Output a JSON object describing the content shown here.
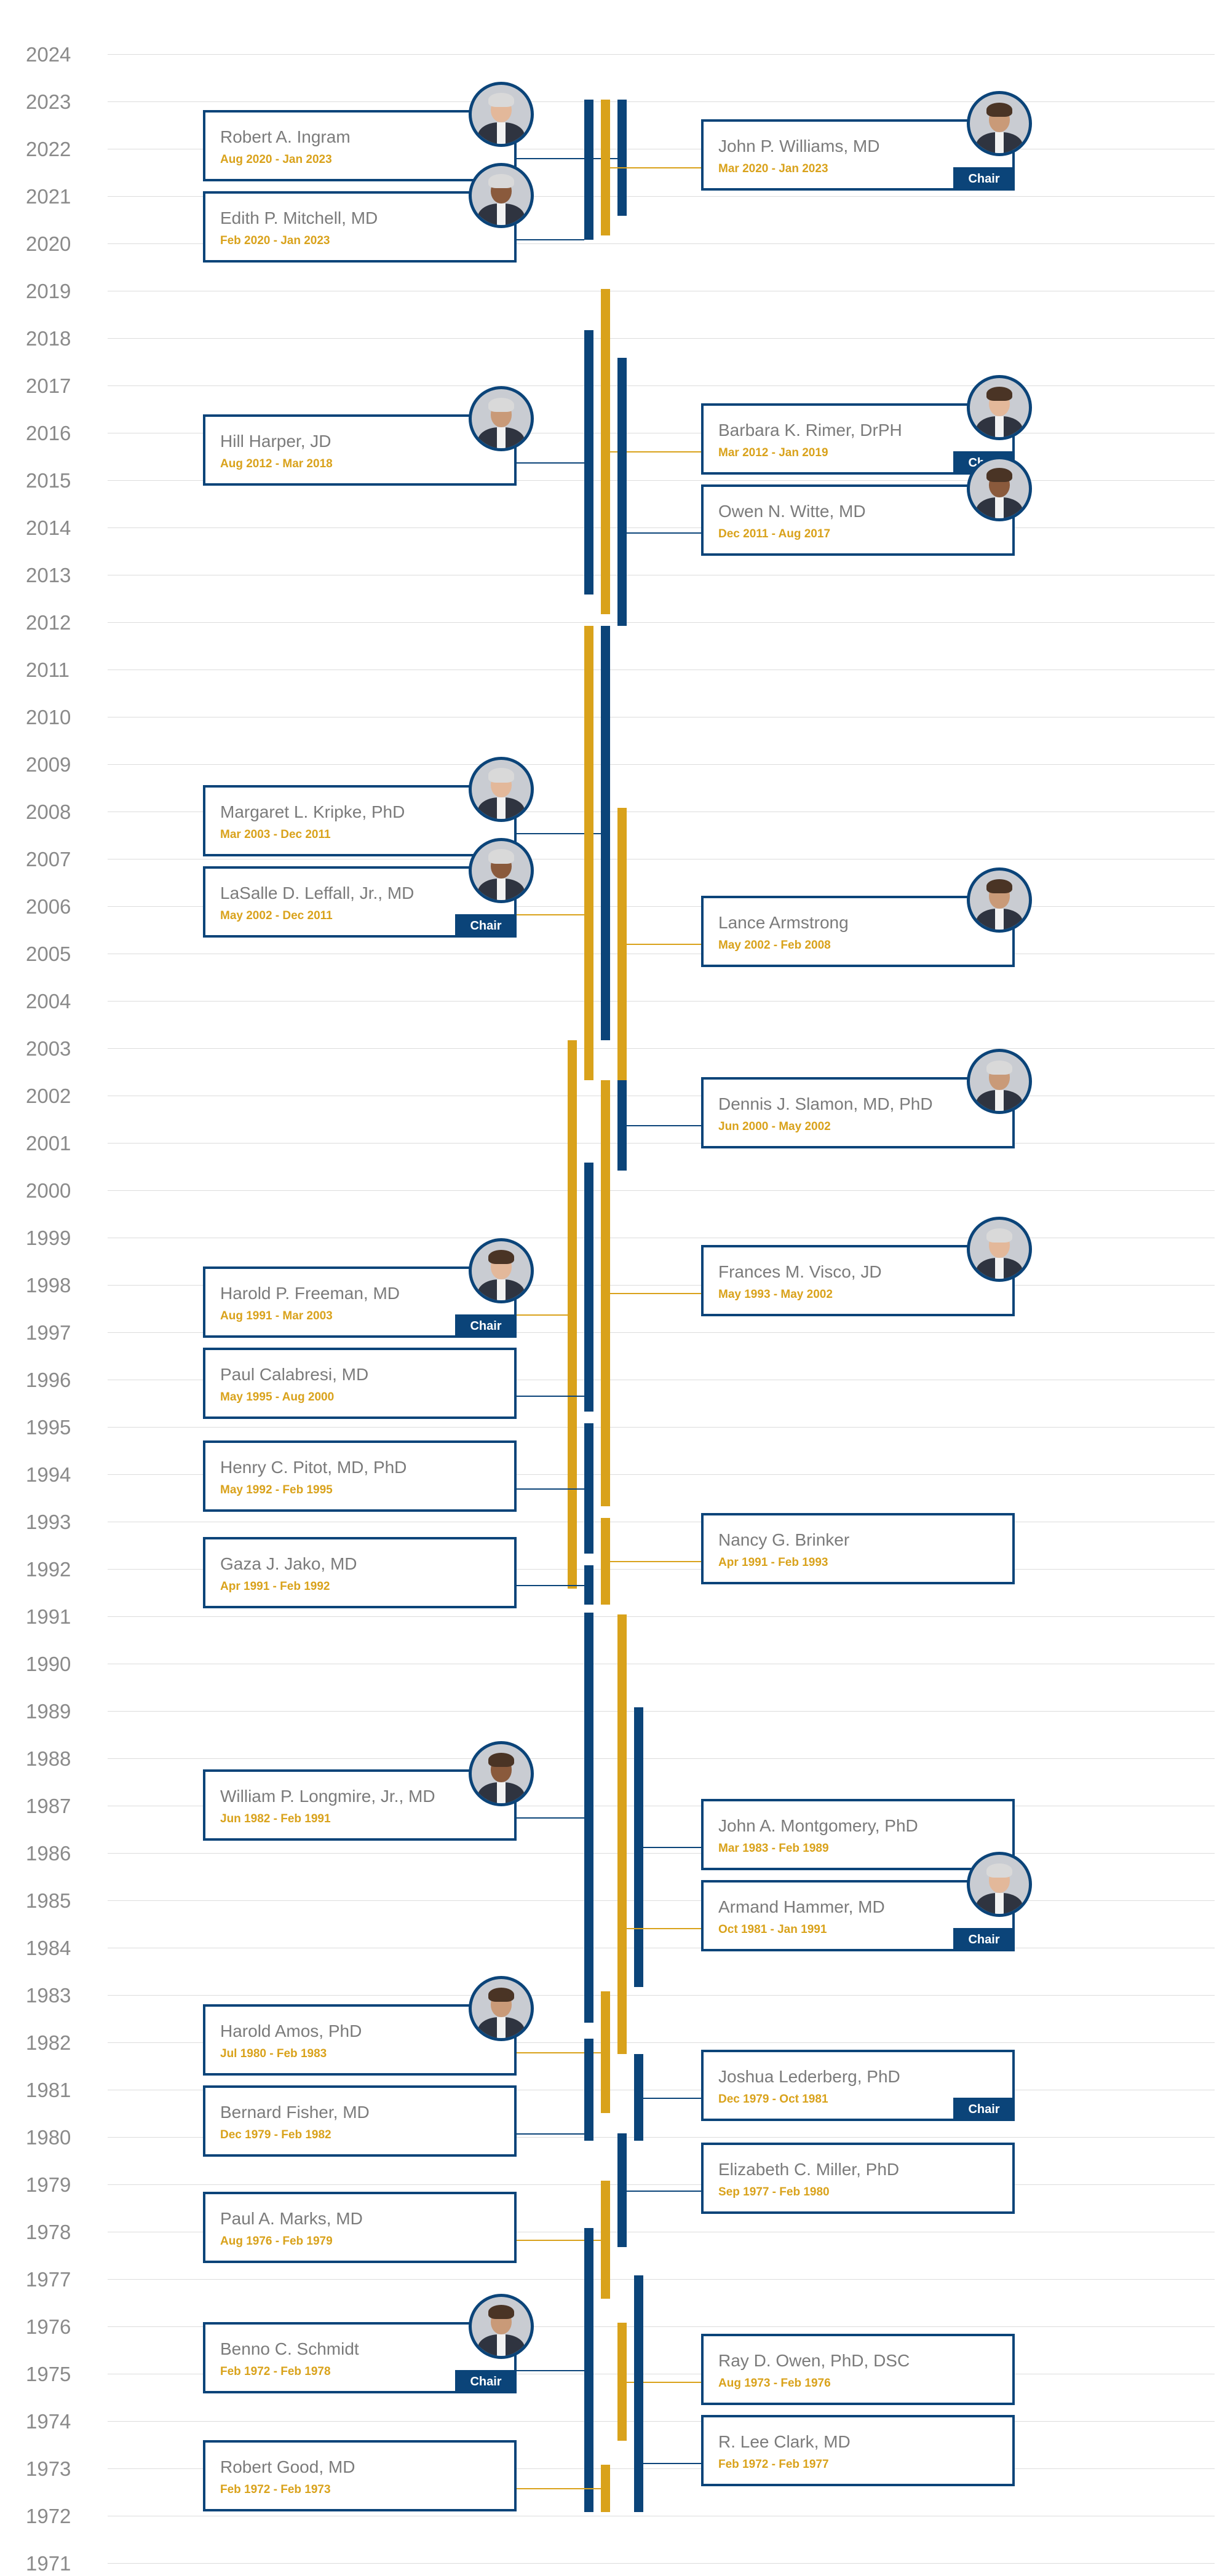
{
  "chart_data": {
    "type": "timeline",
    "x_axis": "none",
    "ylim": [
      1971,
      2024
    ],
    "grid": true,
    "years": [
      2024,
      2023,
      2022,
      2021,
      2020,
      2019,
      2018,
      2017,
      2016,
      2015,
      2014,
      2013,
      2012,
      2011,
      2010,
      2009,
      2008,
      2007,
      2006,
      2005,
      2004,
      2003,
      2002,
      2001,
      2000,
      1999,
      1998,
      1997,
      1996,
      1995,
      1994,
      1993,
      1992,
      1991,
      1990,
      1989,
      1988,
      1987,
      1986,
      1985,
      1984,
      1983,
      1982,
      1981,
      1980,
      1979,
      1978,
      1977,
      1976,
      1975,
      1974,
      1973,
      1972,
      1971
    ],
    "colors": {
      "blue": "#0b4479",
      "gold": "#d9a21b",
      "name_text": "#7b7b7b",
      "grid": "#dcdcdc"
    },
    "members": [
      {
        "name": "Robert A. Ingram",
        "dates": "Aug 2020 - Jan 2023",
        "start": 2020.58,
        "end": 2023.04,
        "side": "left",
        "chair": false,
        "photo": true,
        "lane": 2,
        "color": "blue"
      },
      {
        "name": "John P. Williams, MD",
        "dates": "Mar 2020 - Jan 2023",
        "start": 2020.17,
        "end": 2023.04,
        "side": "right",
        "chair": true,
        "photo": true,
        "lane": 1,
        "color": "gold"
      },
      {
        "name": "Edith P. Mitchell, MD",
        "dates": "Feb 2020 - Jan 2023",
        "start": 2020.08,
        "end": 2023.04,
        "side": "left",
        "chair": false,
        "photo": true,
        "lane": 0,
        "color": "blue"
      },
      {
        "name": "Barbara K. Rimer, DrPH",
        "dates": "Mar 2012 - Jan 2019",
        "start": 2012.17,
        "end": 2019.04,
        "side": "right",
        "chair": true,
        "photo": true,
        "lane": 1,
        "color": "gold"
      },
      {
        "name": "Hill Harper, JD",
        "dates": "Aug 2012 - Mar 2018",
        "start": 2012.58,
        "end": 2018.17,
        "side": "left",
        "chair": false,
        "photo": true,
        "lane": 0,
        "color": "blue"
      },
      {
        "name": "Owen N. Witte, MD",
        "dates": "Dec 2011 - Aug 2017",
        "start": 2011.92,
        "end": 2017.58,
        "side": "right",
        "chair": false,
        "photo": true,
        "lane": 2,
        "color": "blue"
      },
      {
        "name": "Margaret L.  Kripke, PhD",
        "dates": "Mar 2003 - Dec 2011",
        "start": 2003.17,
        "end": 2011.92,
        "side": "left",
        "chair": false,
        "photo": true,
        "lane": 1,
        "color": "blue"
      },
      {
        "name": "Lance Armstrong",
        "dates": "May 2002 - Feb 2008",
        "start": 2002.33,
        "end": 2008.08,
        "side": "right",
        "chair": false,
        "photo": true,
        "lane": 2,
        "color": "gold"
      },
      {
        "name": "LaSalle D. Leffall, Jr., MD",
        "dates": "May 2002 - Dec 2011",
        "start": 2002.33,
        "end": 2011.92,
        "side": "left",
        "chair": true,
        "photo": true,
        "lane": 0,
        "color": "gold"
      },
      {
        "name": "Harold P. Freeman, MD",
        "dates": "Aug 1991 - Mar 2003",
        "start": 1991.58,
        "end": 2003.17,
        "side": "left",
        "chair": true,
        "photo": true,
        "lane": -1,
        "color": "gold"
      },
      {
        "name": "Dennis J. Slamon, MD, PhD",
        "dates": "Jun 2000 - May 2002",
        "start": 2000.42,
        "end": 2002.33,
        "side": "right",
        "chair": false,
        "photo": true,
        "lane": 2,
        "color": "blue"
      },
      {
        "name": "Paul Calabresi, MD",
        "dates": "May 1995 - Aug 2000",
        "start": 1995.33,
        "end": 2000.58,
        "side": "left",
        "chair": false,
        "photo": false,
        "lane": 0,
        "color": "blue"
      },
      {
        "name": "Frances M. Visco, JD",
        "dates": "May 1993 - May 2002",
        "start": 1993.33,
        "end": 2002.33,
        "side": "right",
        "chair": false,
        "photo": true,
        "lane": 1,
        "color": "gold"
      },
      {
        "name": "Henry C. Pitot, MD, PhD",
        "dates": "May 1992 - Feb 1995",
        "start": 1992.33,
        "end": 1995.08,
        "side": "left",
        "chair": false,
        "photo": false,
        "lane": 0,
        "color": "blue"
      },
      {
        "name": "Nancy G. Brinker",
        "dates": "Apr 1991 - Feb 1993",
        "start": 1991.25,
        "end": 1993.08,
        "side": "right",
        "chair": false,
        "photo": false,
        "lane": 1,
        "color": "gold"
      },
      {
        "name": "Gaza J. Jako, MD",
        "dates": "Apr 1991 - Feb 1992",
        "start": 1991.25,
        "end": 1992.08,
        "side": "left",
        "chair": false,
        "photo": false,
        "lane": 0,
        "color": "blue"
      },
      {
        "name": "John A. Montgomery, PhD",
        "dates": "Mar 1983 - Feb 1989",
        "start": 1983.17,
        "end": 1989.08,
        "side": "right",
        "chair": false,
        "photo": false,
        "lane": 3,
        "color": "blue"
      },
      {
        "name": "William P. Longmire, Jr., MD",
        "dates": "Jun 1982 - Feb 1991",
        "start": 1982.42,
        "end": 1991.08,
        "side": "left",
        "chair": false,
        "photo": true,
        "lane": 0,
        "color": "blue"
      },
      {
        "name": "Armand Hammer, MD",
        "dates": "Oct 1981 - Jan 1991",
        "start": 1981.75,
        "end": 1991.04,
        "side": "right",
        "chair": true,
        "photo": true,
        "lane": 2,
        "color": "gold"
      },
      {
        "name": "Harold Amos, PhD",
        "dates": "Jul 1980 - Feb 1983",
        "start": 1980.5,
        "end": 1983.08,
        "side": "left",
        "chair": false,
        "photo": true,
        "lane": 1,
        "color": "gold"
      },
      {
        "name": "Joshua Lederberg, PhD",
        "dates": "Dec 1979 - Oct 1981",
        "start": 1979.92,
        "end": 1981.75,
        "side": "right",
        "chair": true,
        "photo": false,
        "lane": 3,
        "color": "blue"
      },
      {
        "name": "Bernard Fisher, MD",
        "dates": "Dec 1979 - Feb 1982",
        "start": 1979.92,
        "end": 1982.08,
        "side": "left",
        "chair": false,
        "photo": false,
        "lane": 0,
        "color": "blue"
      },
      {
        "name": "Elizabeth C. Miller, PhD",
        "dates": "Sep 1977 - Feb 1980",
        "start": 1977.67,
        "end": 1980.08,
        "side": "right",
        "chair": false,
        "photo": false,
        "lane": 2,
        "color": "blue"
      },
      {
        "name": "Paul A. Marks, MD",
        "dates": "Aug 1976 - Feb 1979",
        "start": 1976.58,
        "end": 1979.08,
        "side": "left",
        "chair": false,
        "photo": false,
        "lane": 1,
        "color": "gold"
      },
      {
        "name": "Ray D. Owen, PhD, DSC",
        "dates": "Aug 1973 - Feb 1976",
        "start": 1973.58,
        "end": 1976.08,
        "side": "right",
        "chair": false,
        "photo": false,
        "lane": 2,
        "color": "gold"
      },
      {
        "name": "Benno C. Schmidt",
        "dates": "Feb 1972 - Feb 1978",
        "start": 1972.08,
        "end": 1978.08,
        "side": "left",
        "chair": true,
        "photo": true,
        "lane": 0,
        "color": "blue"
      },
      {
        "name": "Robert Good, MD",
        "dates": "Feb 1972 - Feb 1973",
        "start": 1972.08,
        "end": 1973.08,
        "side": "left",
        "chair": false,
        "photo": false,
        "lane": 1,
        "color": "gold"
      },
      {
        "name": "R. Lee Clark, MD",
        "dates": "Feb 1972 - Feb 1977",
        "start": 1972.08,
        "end": 1977.08,
        "side": "right",
        "chair": false,
        "photo": false,
        "lane": 3,
        "color": "blue"
      }
    ]
  },
  "labels": {
    "chair_badge": "Chair"
  }
}
